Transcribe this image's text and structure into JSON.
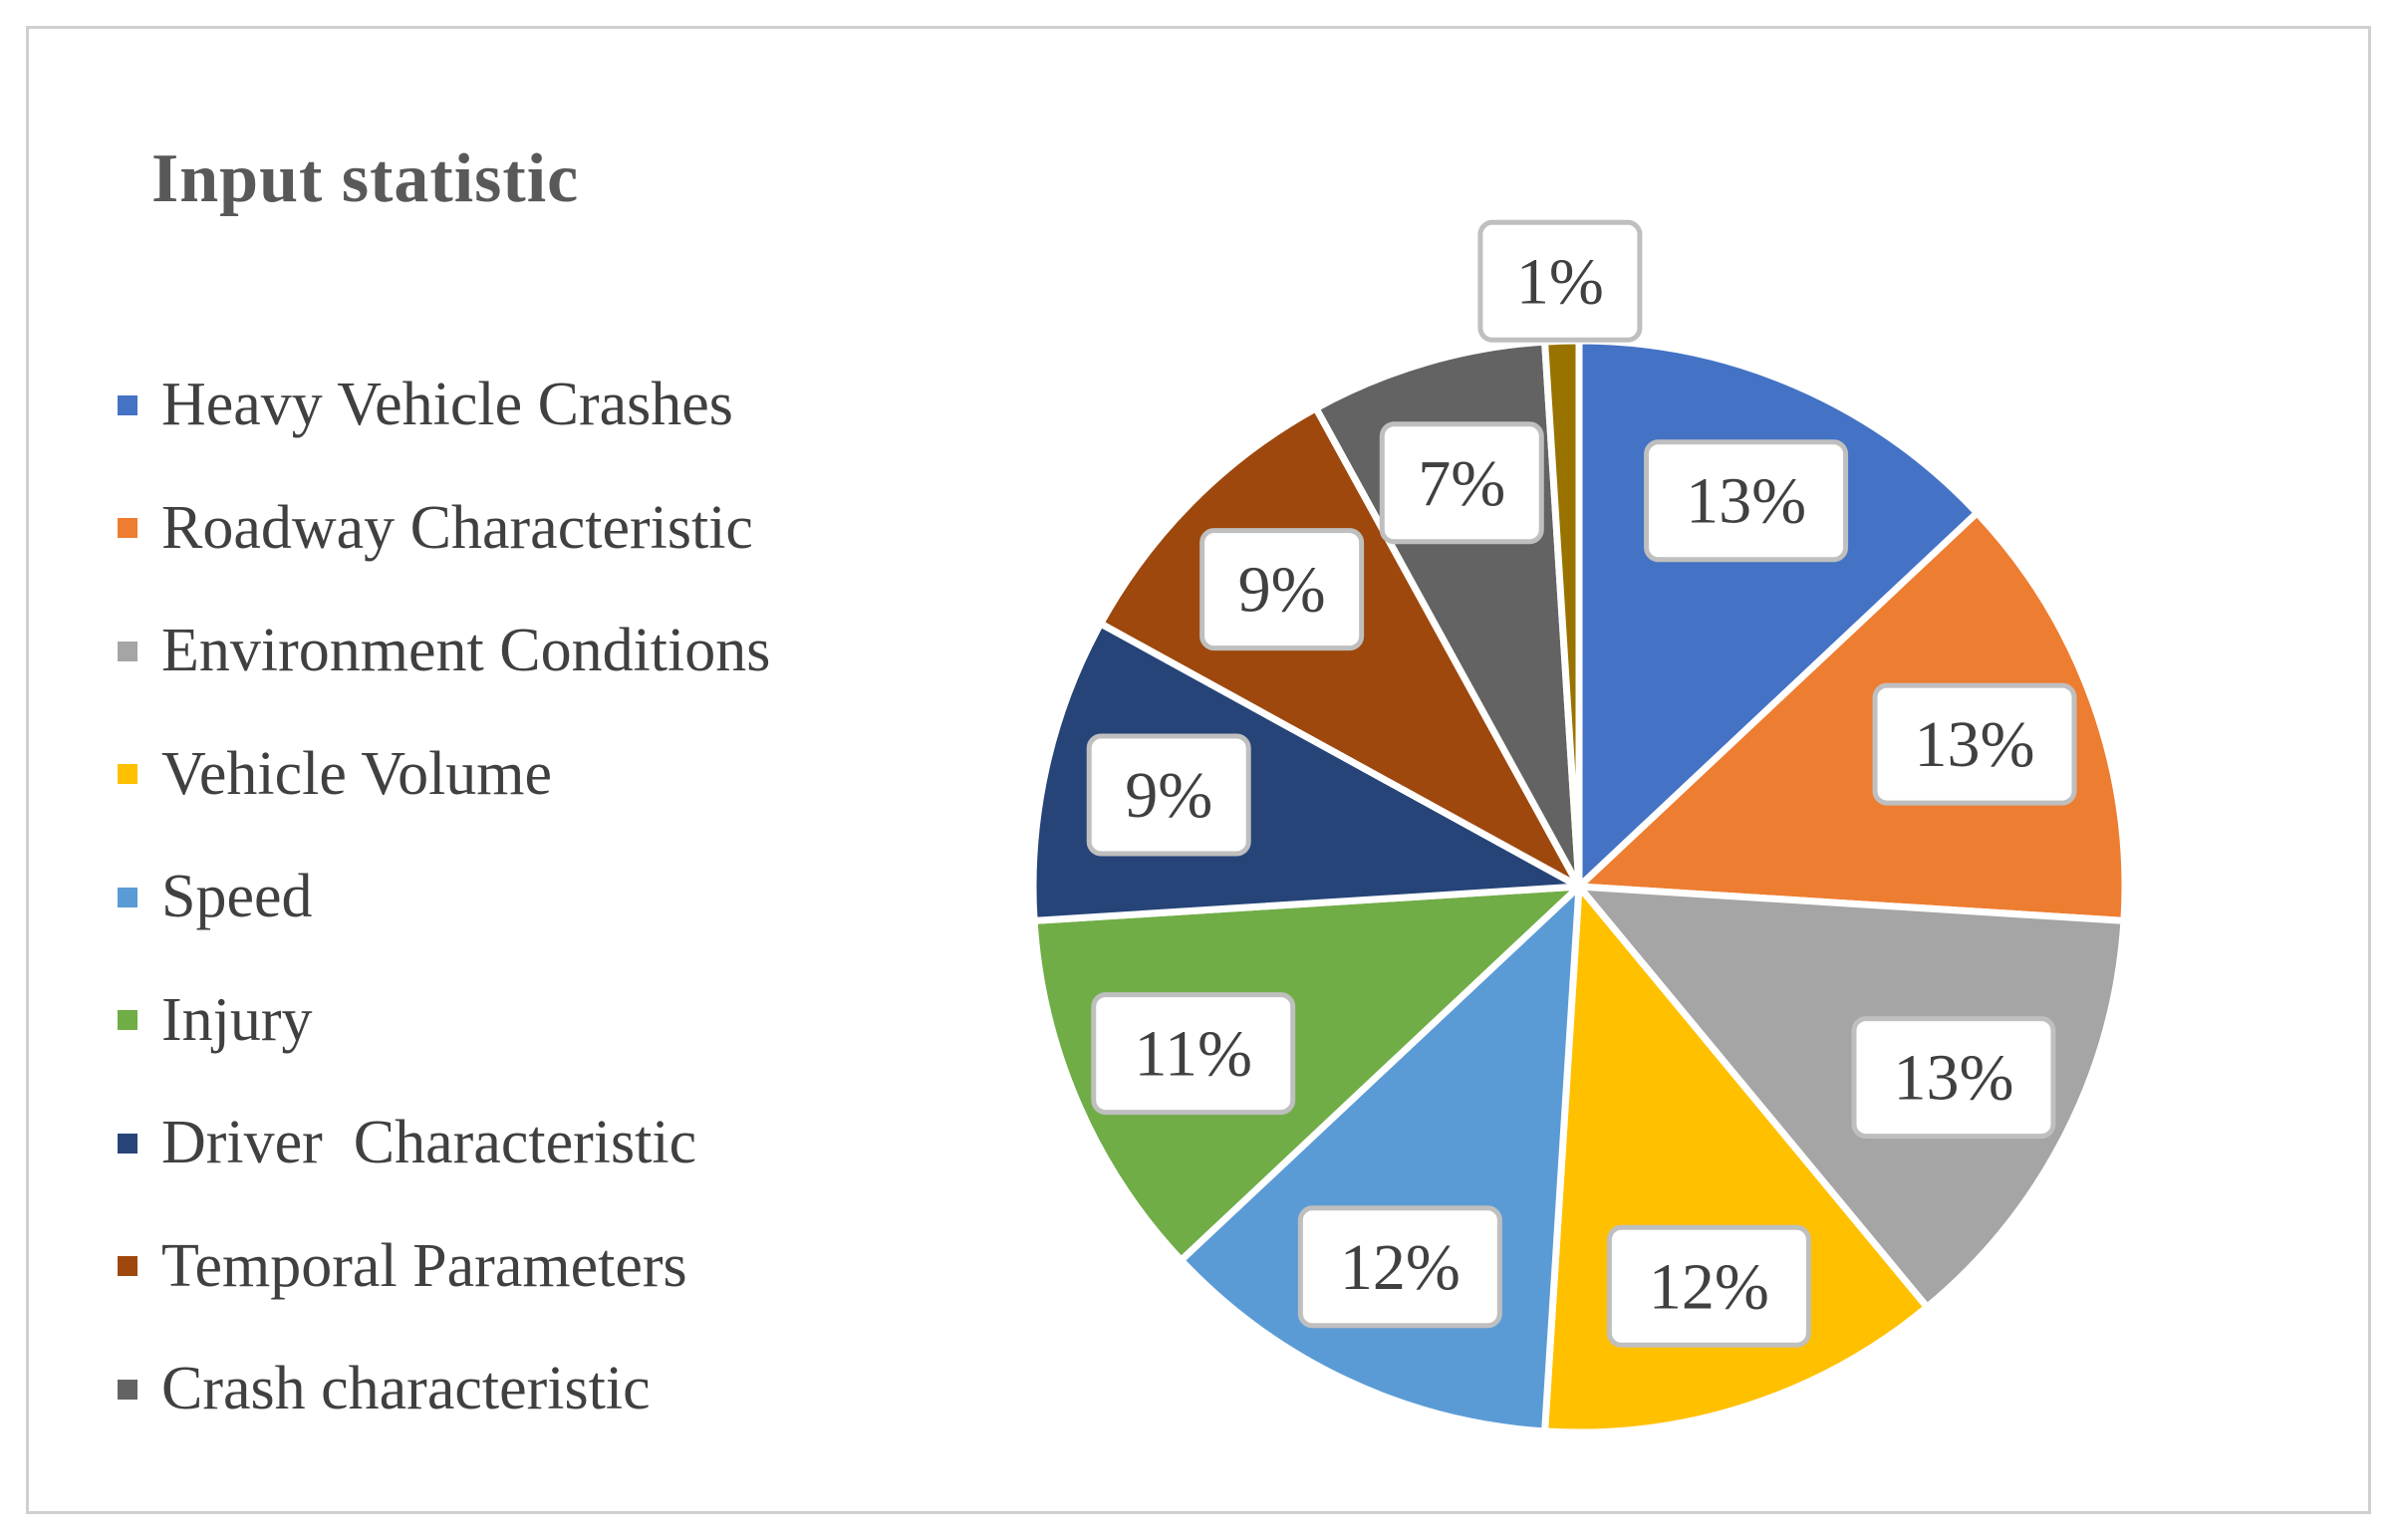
{
  "chart_data": {
    "type": "pie",
    "title": "Input statistic",
    "legend_position": "left",
    "series": [
      {
        "name": "",
        "categories": [
          "Heavy Vehicle Crashes",
          "Roadway Characteristic",
          "Environment Conditions",
          "Vehicle Volume",
          "Speed",
          "Injury",
          "Driver  Characteristic",
          "Temporal Parameters",
          "Crash characteristic",
          ""
        ],
        "values": [
          13,
          13,
          13,
          12,
          12,
          11,
          9,
          9,
          7,
          1
        ],
        "labels": [
          "13%",
          "13%",
          "13%",
          "12%",
          "12%",
          "11%",
          "9%",
          "9%",
          "7%",
          "1%"
        ],
        "colors": [
          "#4472c4",
          "#ed7d31",
          "#a5a5a5",
          "#ffc000",
          "#5b9bd5",
          "#70ad47",
          "#264478",
          "#9e480e",
          "#636363",
          "#997300"
        ]
      }
    ]
  }
}
